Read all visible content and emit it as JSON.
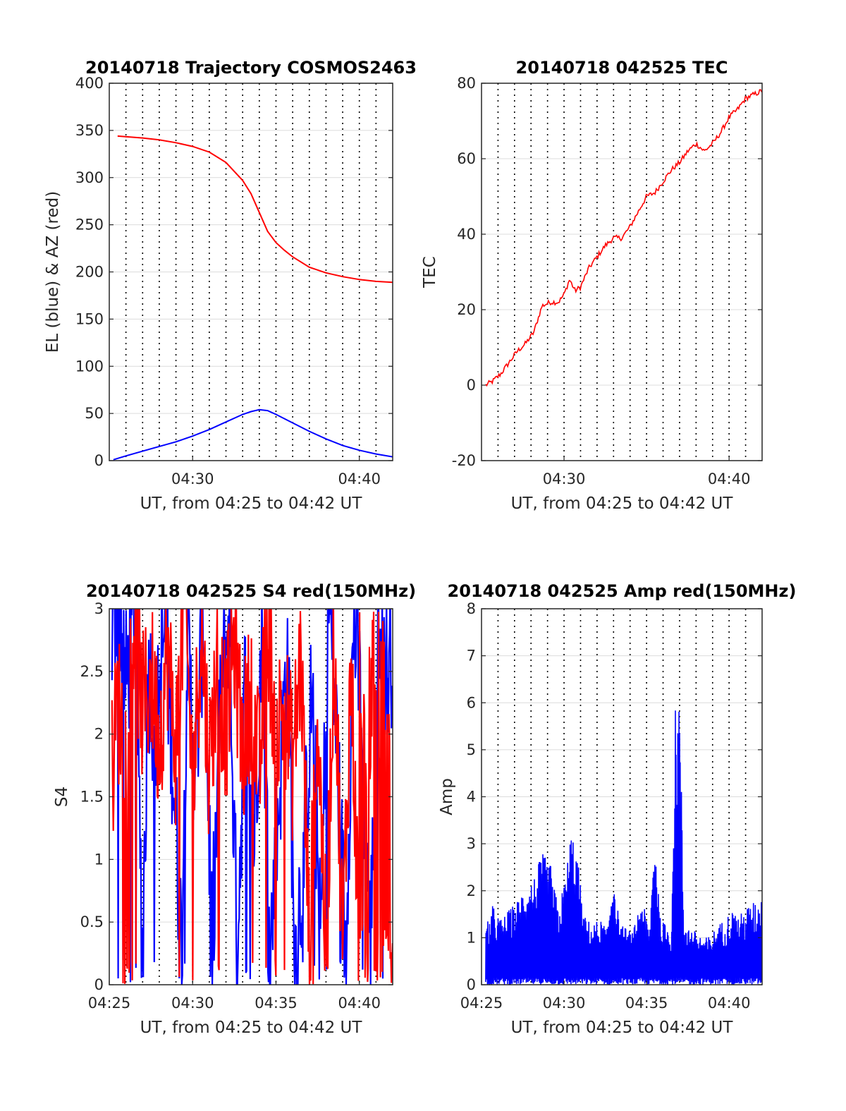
{
  "figure": {
    "background": "#ffffff",
    "grid_color": "#dcdcdc",
    "vertical_dotted_lines": "every minute, black dotted"
  },
  "chart_data": [
    {
      "id": "trajectory",
      "type": "line",
      "title": "20140718 Trajectory COSMOS2463",
      "xlabel": "UT, from 04:25 to 04:42 UT",
      "ylabel": "EL (blue) & AZ (red)",
      "xlim": [
        "04:25",
        "04:42"
      ],
      "ylim": [
        0,
        400
      ],
      "xticks": [
        "04:30",
        "04:40"
      ],
      "yticks": [
        "0",
        "50",
        "100",
        "150",
        "200",
        "250",
        "300",
        "350",
        "400"
      ],
      "grid": true,
      "series": [
        {
          "color": "#ff0000",
          "points": [
            [
              "04:25:30",
              344
            ],
            [
              "04:27:00",
              342
            ],
            [
              "04:28:00",
              340
            ],
            [
              "04:29:00",
              337
            ],
            [
              "04:30:00",
              333
            ],
            [
              "04:31:00",
              327
            ],
            [
              "04:32:00",
              316
            ],
            [
              "04:33:00",
              297
            ],
            [
              "04:33:30",
              283
            ],
            [
              "04:34:00",
              263
            ],
            [
              "04:34:30",
              243
            ],
            [
              "04:35:00",
              231
            ],
            [
              "04:35:30",
              223
            ],
            [
              "04:36:00",
              216
            ],
            [
              "04:37:00",
              205
            ],
            [
              "04:38:00",
              199
            ],
            [
              "04:39:00",
              195
            ],
            [
              "04:40:00",
              192
            ],
            [
              "04:41:00",
              190
            ],
            [
              "04:42:00",
              189
            ]
          ]
        },
        {
          "color": "#0000ff",
          "points": [
            [
              "04:25:15",
              1
            ],
            [
              "04:26:00",
              5
            ],
            [
              "04:27:00",
              10
            ],
            [
              "04:28:00",
              15
            ],
            [
              "04:29:00",
              20
            ],
            [
              "04:30:00",
              26
            ],
            [
              "04:31:00",
              33
            ],
            [
              "04:32:00",
              41
            ],
            [
              "04:33:00",
              49
            ],
            [
              "04:33:30",
              52
            ],
            [
              "04:34:00",
              54
            ],
            [
              "04:34:30",
              53
            ],
            [
              "04:35:00",
              49
            ],
            [
              "04:36:00",
              40
            ],
            [
              "04:37:00",
              31
            ],
            [
              "04:38:00",
              23
            ],
            [
              "04:39:00",
              16
            ],
            [
              "04:40:00",
              11
            ],
            [
              "04:41:00",
              7
            ],
            [
              "04:42:00",
              4
            ]
          ]
        }
      ]
    },
    {
      "id": "tec",
      "type": "line",
      "title": "20140718 042525 TEC",
      "xlabel": "UT, from 04:25 to 04:42 UT",
      "ylabel": "TEC",
      "xlim": [
        "04:25",
        "04:42"
      ],
      "ylim": [
        -20,
        80
      ],
      "xticks": [
        "04:30",
        "04:40"
      ],
      "yticks": [
        "-20",
        "0",
        "20",
        "40",
        "60",
        "80"
      ],
      "grid": true,
      "series": [
        {
          "color": "#ff0000",
          "points": [
            [
              "04:25:15",
              0
            ],
            [
              "04:25:40",
              1
            ],
            [
              "04:26:10",
              3
            ],
            [
              "04:26:40",
              6
            ],
            [
              "04:27:10",
              9
            ],
            [
              "04:27:40",
              11
            ],
            [
              "04:28:10",
              14
            ],
            [
              "04:28:40",
              21
            ],
            [
              "04:29:10",
              22
            ],
            [
              "04:29:40",
              22
            ],
            [
              "04:30:00",
              24
            ],
            [
              "04:30:20",
              28
            ],
            [
              "04:30:40",
              25
            ],
            [
              "04:31:00",
              26
            ],
            [
              "04:31:30",
              31
            ],
            [
              "04:32:00",
              34
            ],
            [
              "04:32:30",
              37
            ],
            [
              "04:33:00",
              39
            ],
            [
              "04:33:30",
              39
            ],
            [
              "04:34:00",
              42
            ],
            [
              "04:34:30",
              46
            ],
            [
              "04:35:00",
              50
            ],
            [
              "04:35:30",
              51
            ],
            [
              "04:36:00",
              54
            ],
            [
              "04:36:30",
              57
            ],
            [
              "04:37:00",
              59
            ],
            [
              "04:37:30",
              62
            ],
            [
              "04:38:00",
              64
            ],
            [
              "04:38:30",
              62
            ],
            [
              "04:39:00",
              64
            ],
            [
              "04:39:30",
              67
            ],
            [
              "04:40:00",
              71
            ],
            [
              "04:40:30",
              73
            ],
            [
              "04:41:00",
              76
            ],
            [
              "04:41:30",
              77
            ],
            [
              "04:42:00",
              78
            ]
          ]
        }
      ]
    },
    {
      "id": "s4",
      "type": "line",
      "title": "20140718 042525 S4 red(150MHz)",
      "xlabel": "UT, from 04:25 to 04:42 UT",
      "ylabel": "S4",
      "xlim": [
        "04:25",
        "04:42"
      ],
      "ylim": [
        0,
        3
      ],
      "xticks": [
        "04:25",
        "04:30",
        "04:35",
        "04:40"
      ],
      "yticks": [
        "0",
        "0.5",
        "1",
        "1.5",
        "2",
        "2.5",
        "3"
      ],
      "grid": true,
      "series": [
        {
          "color": "#0000ff",
          "style": "dense noisy trace, mostly saturated between 1.5 and 3, frequent drops",
          "points": [
            [
              "04:25:10",
              2.4
            ],
            [
              "04:25:30",
              3.0
            ],
            [
              "04:26:00",
              2.1
            ],
            [
              "04:26:30",
              2.8
            ],
            [
              "04:27:00",
              0.0
            ],
            [
              "04:27:20",
              2.3
            ],
            [
              "04:27:50",
              1.7
            ],
            [
              "04:28:20",
              2.6
            ],
            [
              "04:28:50",
              1.5
            ],
            [
              "04:29:20",
              0.0
            ],
            [
              "04:29:40",
              2.5
            ],
            [
              "04:30:10",
              1.4
            ],
            [
              "04:30:40",
              2.8
            ],
            [
              "04:31:10",
              0.0
            ],
            [
              "04:31:40",
              1.9
            ],
            [
              "04:32:10",
              2.7
            ],
            [
              "04:32:40",
              0.0
            ],
            [
              "04:33:10",
              2.2
            ],
            [
              "04:33:40",
              0.9
            ],
            [
              "04:34:10",
              2.6
            ],
            [
              "04:34:40",
              0.0
            ],
            [
              "04:35:10",
              1.2
            ],
            [
              "04:35:40",
              2.4
            ],
            [
              "04:36:10",
              0.0
            ],
            [
              "04:36:40",
              0.8
            ],
            [
              "04:37:10",
              2.1
            ],
            [
              "04:37:40",
              0.0
            ],
            [
              "04:38:10",
              2.9
            ],
            [
              "04:38:40",
              1.6
            ],
            [
              "04:39:10",
              0.0
            ],
            [
              "04:39:40",
              2.7
            ],
            [
              "04:40:10",
              1.8
            ],
            [
              "04:40:40",
              0.0
            ],
            [
              "04:41:10",
              2.8
            ],
            [
              "04:41:40",
              2.2
            ],
            [
              "04:42:00",
              2.5
            ]
          ]
        },
        {
          "color": "#ff0000",
          "style": "dense noisy trace, between 1.3 and 3, dense fill near 0 after 04:40",
          "points": [
            [
              "04:25:10",
              1.4
            ],
            [
              "04:25:30",
              2.0
            ],
            [
              "04:26:00",
              1.6
            ],
            [
              "04:26:30",
              2.7
            ],
            [
              "04:27:00",
              1.9
            ],
            [
              "04:27:30",
              2.2
            ],
            [
              "04:28:00",
              1.7
            ],
            [
              "04:28:30",
              2.4
            ],
            [
              "04:29:00",
              1.6
            ],
            [
              "04:29:30",
              2.9
            ],
            [
              "04:30:00",
              1.3
            ],
            [
              "04:30:30",
              2.6
            ],
            [
              "04:31:00",
              1.5
            ],
            [
              "04:31:30",
              2.3
            ],
            [
              "04:32:00",
              1.8
            ],
            [
              "04:32:30",
              2.5
            ],
            [
              "04:33:00",
              1.6
            ],
            [
              "04:33:30",
              2.1
            ],
            [
              "04:34:00",
              1.4
            ],
            [
              "04:34:30",
              2.7
            ],
            [
              "04:35:00",
              1.7
            ],
            [
              "04:35:30",
              2.0
            ],
            [
              "04:36:00",
              1.5
            ],
            [
              "04:36:30",
              2.4
            ],
            [
              "04:37:00",
              0.0
            ],
            [
              "04:37:30",
              1.9
            ],
            [
              "04:38:00",
              0.0
            ],
            [
              "04:38:30",
              2.6
            ],
            [
              "04:39:00",
              0.0
            ],
            [
              "04:39:30",
              2.3
            ],
            [
              "04:40:00",
              0.0
            ],
            [
              "04:40:30",
              1.8
            ],
            [
              "04:41:00",
              0.0
            ],
            [
              "04:41:30",
              2.9
            ],
            [
              "04:42:00",
              0.0
            ]
          ]
        }
      ]
    },
    {
      "id": "amp",
      "type": "line",
      "title": "20140718 042525 Amp red(150MHz)",
      "xlabel": "UT, from 04:25 to 04:42 UT",
      "ylabel": "Amp",
      "xlim": [
        "04:25",
        "04:42"
      ],
      "ylim": [
        0,
        8
      ],
      "xticks": [
        "04:25",
        "04:30",
        "04:35",
        "04:40"
      ],
      "yticks": [
        "0",
        "1",
        "2",
        "3",
        "4",
        "5",
        "6",
        "7",
        "8"
      ],
      "grid": true,
      "series": [
        {
          "color": "#0000ff",
          "style": "dense noisy trace from 0 to envelope",
          "envelope": [
            [
              "04:25:15",
              1.2
            ],
            [
              "04:25:40",
              1.7
            ],
            [
              "04:26:10",
              1.4
            ],
            [
              "04:26:40",
              1.6
            ],
            [
              "04:27:10",
              1.8
            ],
            [
              "04:27:40",
              2.2
            ],
            [
              "04:28:10",
              2.3
            ],
            [
              "04:28:40",
              2.8
            ],
            [
              "04:29:10",
              2.6
            ],
            [
              "04:29:40",
              1.6
            ],
            [
              "04:30:10",
              2.5
            ],
            [
              "04:30:25",
              3.4
            ],
            [
              "04:30:50",
              2.7
            ],
            [
              "04:31:10",
              1.5
            ],
            [
              "04:31:40",
              1.3
            ],
            [
              "04:32:10",
              1.4
            ],
            [
              "04:32:40",
              1.2
            ],
            [
              "04:33:00",
              2.7
            ],
            [
              "04:33:20",
              1.3
            ],
            [
              "04:33:50",
              1.2
            ],
            [
              "04:34:10",
              1.1
            ],
            [
              "04:34:40",
              1.9
            ],
            [
              "04:35:10",
              1.2
            ],
            [
              "04:35:30",
              3.5
            ],
            [
              "04:35:50",
              1.4
            ],
            [
              "04:36:10",
              1.3
            ],
            [
              "04:36:30",
              1.2
            ],
            [
              "04:36:45",
              6.0
            ],
            [
              "04:37:00",
              6.4
            ],
            [
              "04:37:15",
              1.5
            ],
            [
              "04:37:40",
              1.2
            ],
            [
              "04:38:10",
              1.1
            ],
            [
              "04:38:40",
              1.0
            ],
            [
              "04:39:10",
              1.2
            ],
            [
              "04:39:40",
              1.4
            ],
            [
              "04:40:10",
              1.6
            ],
            [
              "04:40:40",
              1.5
            ],
            [
              "04:41:10",
              1.7
            ],
            [
              "04:41:40",
              1.8
            ],
            [
              "04:42:00",
              1.9
            ]
          ]
        }
      ]
    }
  ]
}
